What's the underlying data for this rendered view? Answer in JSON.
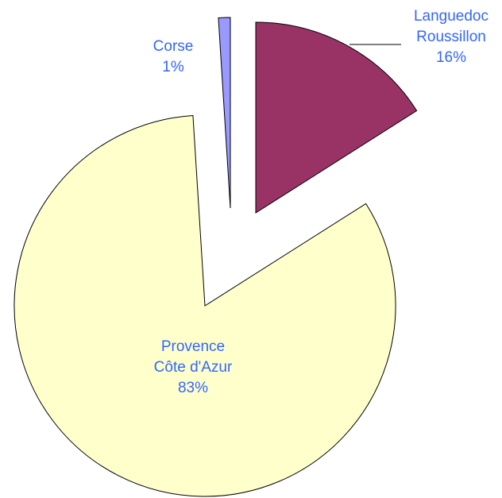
{
  "chart_data": {
    "type": "pie",
    "categories": [
      "Languedoc Roussillon",
      "Provence Côte d'Azur",
      "Corse"
    ],
    "values": [
      16,
      83,
      1
    ],
    "value_labels": [
      "16%",
      "83%",
      "1%"
    ],
    "colors": [
      "#993366",
      "#ffffcc",
      "#9999ff"
    ]
  }
}
